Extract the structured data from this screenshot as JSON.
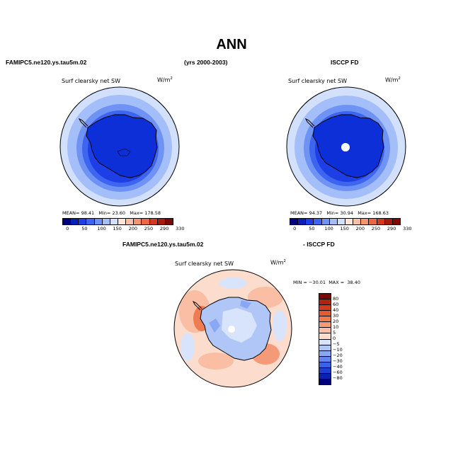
{
  "title": "ANN",
  "header": {
    "left": "FAMIPC5.ne120.ys.tau5m.02",
    "center": "(yrs 2000-2003)",
    "right": "ISCCP FD"
  },
  "diff_header": {
    "left": "FAMIPC5.ne120.ys.tau5m.02",
    "right": "- ISCCP FD"
  },
  "panels": {
    "left": {
      "label": "Surf clearsky net SW",
      "units": "W/m",
      "units_exp": "2",
      "mean_label": "MEAN=",
      "mean": "98.41",
      "min_label": "Min=",
      "min": "23.60",
      "max_label": "Max=",
      "max": "178.58"
    },
    "right": {
      "label": "Surf clearsky net SW",
      "units": "W/m",
      "units_exp": "2",
      "mean_label": "MEAN=",
      "mean": "94.37",
      "min_label": "Min=",
      "min": "30.94",
      "max_label": "Max=",
      "max": "168.63"
    },
    "diff": {
      "label": "Surf clearsky net SW",
      "units": "W/m",
      "units_exp": "2",
      "min_label": "MIN =",
      "min": "−30.01",
      "max_label": "MAX =",
      "max": "38.40"
    }
  },
  "colorbar_main": {
    "ticks": [
      "0",
      "50",
      "100",
      "150",
      "200",
      "250",
      "290",
      "330"
    ],
    "colors": [
      "#00007f",
      "#0a1fb8",
      "#1f3fe6",
      "#3d65f0",
      "#6f93f5",
      "#a3bef8",
      "#d3e0fb",
      "#fde6d9",
      "#fac0a6",
      "#f49570",
      "#e96842",
      "#d13a1e",
      "#a51b0c",
      "#7c0a03"
    ]
  },
  "colorbar_diff": {
    "ticks": [
      "80",
      "60",
      "40",
      "30",
      "20",
      "10",
      "5",
      "0",
      "−5",
      "−10",
      "−20",
      "−30",
      "−40",
      "−60",
      "−80"
    ],
    "colors": [
      "#7c0a03",
      "#b0240f",
      "#d13a1e",
      "#e25a36",
      "#ef7b52",
      "#f59a78",
      "#f9bea3",
      "#fcdccd",
      "#d8e4fb",
      "#b0c6f7",
      "#8aa7f3",
      "#6186ee",
      "#3a62e6",
      "#1c3fd2",
      "#0a22b0",
      "#00007f"
    ]
  }
}
